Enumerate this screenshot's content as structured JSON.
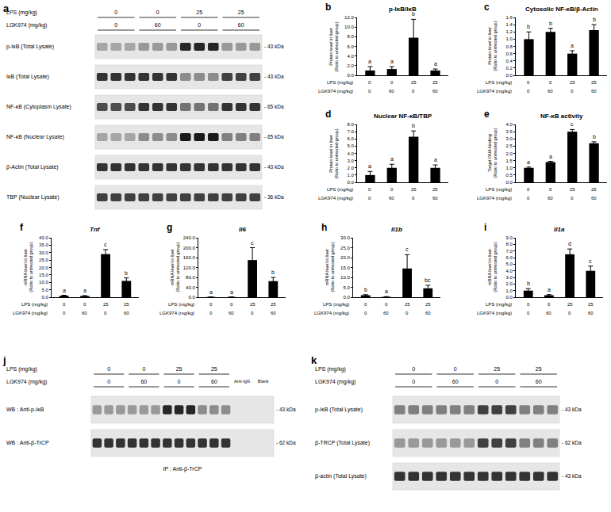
{
  "treatments": [
    {
      "label": "LPS (mg/kg)",
      "values": [
        0,
        0,
        25,
        25
      ]
    },
    {
      "label": "LGK974 (mg/kg)",
      "values": [
        0,
        60,
        0,
        60
      ]
    }
  ],
  "blots": [
    {
      "panel": "a",
      "lanes_per_group": 3,
      "rows": [
        {
          "label": "p-IκB (Total Lysate)",
          "size_label": "- 43 kDa",
          "intensity": [
            0.35,
            0.4,
            0.85,
            0.4
          ]
        },
        {
          "label": "IκB (Total Lysate)",
          "size_label": "- 43 kDa",
          "intensity": [
            0.8,
            0.8,
            0.45,
            0.75
          ]
        },
        {
          "label": "NF-κB (Cytoplasm Lysate)",
          "size_label": "- 65 kDa",
          "intensity": [
            0.7,
            0.8,
            0.55,
            0.8
          ]
        },
        {
          "label": "NF-κB (Nuclear Lysate)",
          "size_label": "- 65 kDa",
          "intensity": [
            0.35,
            0.45,
            0.9,
            0.5
          ]
        },
        {
          "label": "β-Actin (Total Lysate)",
          "size_label": "- 43 kDa",
          "intensity": [
            0.8,
            0.8,
            0.8,
            0.8
          ]
        },
        {
          "label": "TBP (Nuclear Lysate)",
          "size_label": "- 36 kDa",
          "intensity": [
            0.75,
            0.75,
            0.75,
            0.75
          ]
        }
      ]
    },
    {
      "panel": "j",
      "lanes_per_group": 3,
      "extra_lanes": [
        "Anti-IgG",
        "Blank"
      ],
      "rows": [
        {
          "label": "WB : Anti-p-IκB",
          "size_label": "- 43 kDa",
          "intensity": [
            0.4,
            0.4,
            0.85,
            0.45,
            0,
            0
          ]
        },
        {
          "label": "WB : Anti-β-TrCP",
          "size_label": "- 62 kDa",
          "intensity": [
            0.8,
            0.8,
            0.8,
            0.8,
            0,
            0
          ]
        }
      ],
      "footer": "IP : Anti-β-TrCP"
    },
    {
      "panel": "k",
      "lanes_per_group": 3,
      "rows": [
        {
          "label": "p-IκB (Total Lysate)",
          "size_label": "- 43 kDa",
          "intensity": [
            0.5,
            0.5,
            0.75,
            0.5
          ]
        },
        {
          "label": "β-TRCP (Total Lysate)",
          "size_label": "- 62 kDa",
          "intensity": [
            0.4,
            0.4,
            0.75,
            0.5
          ]
        },
        {
          "label": "β-actin (Total Lysate)",
          "size_label": "- 43 kDa",
          "intensity": [
            0.8,
            0.8,
            0.8,
            0.8
          ]
        }
      ]
    }
  ],
  "chart_data": [
    {
      "panel": "b",
      "type": "bar",
      "title": "p-IκB/IκB",
      "ylabel": "Protein level in liver (Ratio to untreated group)",
      "categories": [
        null,
        null,
        null,
        null
      ],
      "values": [
        1.0,
        1.3,
        7.8,
        1.0
      ],
      "errors": [
        0.8,
        0.5,
        3.8,
        0.3
      ],
      "letters": [
        "a",
        "a",
        "b",
        "a"
      ],
      "color": "#000000",
      "ylim": [
        0,
        12
      ],
      "yticks": [
        {
          "value": 0,
          "label": "0.0"
        },
        {
          "value": 2,
          "label": "2.0"
        },
        {
          "value": 4,
          "label": "4.0"
        },
        {
          "value": 6,
          "label": "6.0"
        },
        {
          "value": 8,
          "label": "8.0"
        },
        {
          "value": 10,
          "label": "10.0"
        },
        {
          "value": 12,
          "label": "12.0"
        }
      ],
      "tick_labels": "y",
      "grid": false
    },
    {
      "panel": "c",
      "type": "bar",
      "title": "Cytosolic NF-κB/β-Actin",
      "ylabel": "Protein level in liver (Ratio to untreated group)",
      "categories": [
        null,
        null,
        null,
        null
      ],
      "values": [
        1.0,
        1.2,
        0.6,
        1.25
      ],
      "errors": [
        0.2,
        0.1,
        0.08,
        0.15
      ],
      "letters": [
        "b",
        "b",
        "a",
        "b"
      ],
      "color": "#000000",
      "ylim": [
        0,
        1.6
      ],
      "yticks": [
        {
          "value": 0,
          "label": "0.0"
        },
        {
          "value": 0.2,
          "label": "0.2"
        },
        {
          "value": 0.4,
          "label": "0.4"
        },
        {
          "value": 0.6,
          "label": "0.6"
        },
        {
          "value": 0.8,
          "label": "0.8"
        },
        {
          "value": 1,
          "label": "1.0"
        },
        {
          "value": 1.2,
          "label": "1.2"
        },
        {
          "value": 1.4,
          "label": "1.4"
        },
        {
          "value": 1.6,
          "label": "1.6"
        }
      ],
      "tick_labels": "y",
      "grid": false
    },
    {
      "panel": "d",
      "type": "bar",
      "title": "Nuclear NF-κB/TBP",
      "ylabel": "Protein level in liver (Ratio to untreated group)",
      "categories": [
        null,
        null,
        null,
        null
      ],
      "values": [
        1.0,
        2.0,
        6.3,
        2.0
      ],
      "errors": [
        0.5,
        0.5,
        0.8,
        0.4
      ],
      "letters": [
        "a",
        "a",
        "b",
        "a"
      ],
      "color": "#000000",
      "ylim": [
        0,
        8
      ],
      "yticks": [
        {
          "value": 0,
          "label": "0.0"
        },
        {
          "value": 1,
          "label": "1.0"
        },
        {
          "value": 2,
          "label": "2.0"
        },
        {
          "value": 3,
          "label": "3.0"
        },
        {
          "value": 4,
          "label": "4.0"
        },
        {
          "value": 5,
          "label": "5.0"
        },
        {
          "value": 6,
          "label": "6.0"
        },
        {
          "value": 7,
          "label": "7.0"
        },
        {
          "value": 8,
          "label": "8.0"
        }
      ],
      "tick_labels": "y",
      "grid": false
    },
    {
      "panel": "e",
      "type": "bar",
      "title": "NF-κB activity",
      "ylabel": "Target DNA binding (Ratio to untreated group)",
      "categories": [
        null,
        null,
        null,
        null
      ],
      "values": [
        1.0,
        1.4,
        3.5,
        2.7
      ],
      "errors": [
        0.05,
        0.05,
        0.15,
        0.1
      ],
      "letters": [
        "a",
        "a",
        "c",
        "b"
      ],
      "color": "#000000",
      "ylim": [
        0,
        4
      ],
      "yticks": [
        {
          "value": 0,
          "label": "0.0"
        },
        {
          "value": 0.5,
          "label": "0.5"
        },
        {
          "value": 1,
          "label": "1.0"
        },
        {
          "value": 1.5,
          "label": "1.5"
        },
        {
          "value": 2,
          "label": "2.0"
        },
        {
          "value": 2.5,
          "label": "2.5"
        },
        {
          "value": 3,
          "label": "3.0"
        },
        {
          "value": 3.5,
          "label": "3.5"
        },
        {
          "value": 4,
          "label": "4.0"
        }
      ],
      "tick_labels": "y",
      "grid": false
    },
    {
      "panel": "f",
      "type": "bar",
      "title": "Tnf",
      "ylabel": "mRNA level in liver (Ratio to untreated group)",
      "categories": [
        null,
        null,
        null,
        null
      ],
      "values": [
        1.0,
        0.8,
        29,
        11
      ],
      "errors": [
        0.3,
        0.3,
        3,
        2
      ],
      "letters": [
        "a",
        "a",
        "c",
        "b"
      ],
      "color": "#000000",
      "ylim": [
        0,
        40
      ],
      "yticks": [
        {
          "value": 0,
          "label": "0.0"
        },
        {
          "value": 5,
          "label": "5.0"
        },
        {
          "value": 10,
          "label": "10.0"
        },
        {
          "value": 15,
          "label": "15.0"
        },
        {
          "value": 20,
          "label": "20.0"
        },
        {
          "value": 25,
          "label": "25.0"
        },
        {
          "value": 30,
          "label": "30.0"
        },
        {
          "value": 35,
          "label": "35.0"
        },
        {
          "value": 40,
          "label": "40.0"
        }
      ],
      "tick_labels": "y",
      "grid": false
    },
    {
      "panel": "g",
      "type": "bar",
      "title": "Il6",
      "ylabel": "mRNA level in liver (Ratio to untreated group)",
      "categories": [
        null,
        null,
        null,
        null
      ],
      "values": [
        1,
        1,
        150,
        65
      ],
      "errors": [
        0.5,
        0.5,
        50,
        15
      ],
      "letters": [
        "a",
        "a",
        "c",
        "b"
      ],
      "color": "#000000",
      "ylim": [
        0,
        240
      ],
      "yticks": [
        {
          "value": 0,
          "label": "0.0"
        },
        {
          "value": 40,
          "label": "40.0"
        },
        {
          "value": 80,
          "label": "80.0"
        },
        {
          "value": 120,
          "label": "120.0"
        },
        {
          "value": 160,
          "label": "160.0"
        },
        {
          "value": 200,
          "label": "200.0"
        },
        {
          "value": 240,
          "label": "240.0"
        }
      ],
      "tick_labels": "y",
      "grid": false
    },
    {
      "panel": "h",
      "type": "bar",
      "title": "Il1b",
      "ylabel": "mRNA level in liver (Ratio to untreated group)",
      "categories": [
        null,
        null,
        null,
        null
      ],
      "values": [
        1.0,
        0.2,
        14.5,
        4.5
      ],
      "errors": [
        0.3,
        0.1,
        7,
        1.5
      ],
      "letters": [
        "b",
        "a",
        "c",
        "bc"
      ],
      "color": "#000000",
      "ylim": [
        0,
        30
      ],
      "yticks": [
        {
          "value": 0,
          "label": "0.0"
        },
        {
          "value": 5,
          "label": "5.0"
        },
        {
          "value": 10,
          "label": "10.0"
        },
        {
          "value": 15,
          "label": "15.0"
        },
        {
          "value": 20,
          "label": "20.0"
        },
        {
          "value": 25,
          "label": "25.0"
        },
        {
          "value": 30,
          "label": "30.0"
        }
      ],
      "tick_labels": "y",
      "grid": false
    },
    {
      "panel": "i",
      "type": "bar",
      "title": "Il1a",
      "ylabel": "mRNA level in liver (Ratio to untreated group)",
      "categories": [
        null,
        null,
        null,
        null
      ],
      "values": [
        1.0,
        0.3,
        6.5,
        4.0
      ],
      "errors": [
        0.3,
        0.1,
        0.8,
        0.7
      ],
      "letters": [
        "b",
        "a",
        "d",
        "c"
      ],
      "color": "#000000",
      "ylim": [
        0,
        9
      ],
      "yticks": [
        {
          "value": 0,
          "label": "0.0"
        },
        {
          "value": 1,
          "label": "1.0"
        },
        {
          "value": 2,
          "label": "2.0"
        },
        {
          "value": 3,
          "label": "3.0"
        },
        {
          "value": 4,
          "label": "4.0"
        },
        {
          "value": 5,
          "label": "5.0"
        },
        {
          "value": 6,
          "label": "6.0"
        },
        {
          "value": 7,
          "label": "7.0"
        },
        {
          "value": 8,
          "label": "8.0"
        },
        {
          "value": 9,
          "label": "9.0"
        }
      ],
      "tick_labels": "y",
      "grid": false
    }
  ]
}
